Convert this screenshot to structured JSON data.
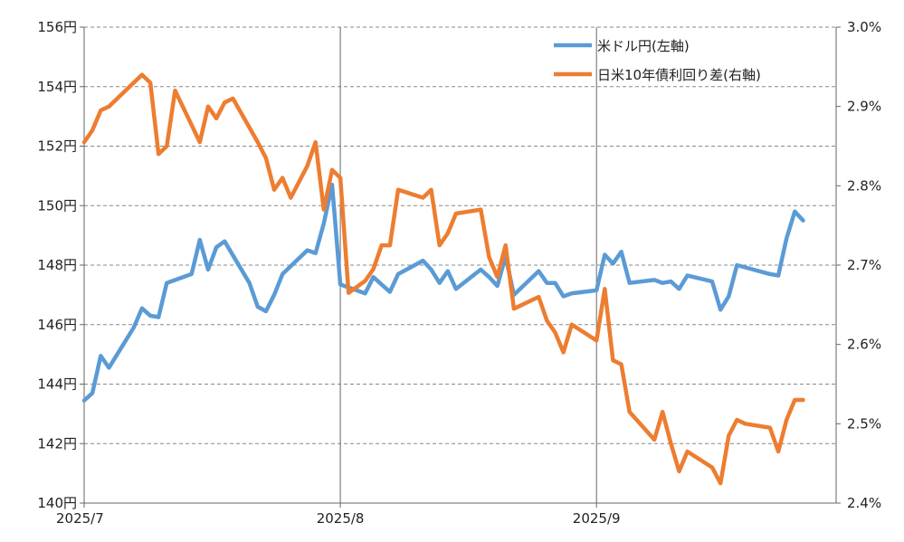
{
  "chart_data": {
    "type": "line",
    "x_axis": {
      "type": "date",
      "min": "2025-07-01",
      "max": "2025-09-30",
      "ticks": [
        {
          "date": "2025-07-01",
          "label": "2025/7"
        },
        {
          "date": "2025-08-01",
          "label": "2025/8"
        },
        {
          "date": "2025-09-01",
          "label": "2025/9"
        }
      ]
    },
    "y_left": {
      "min": 140,
      "max": 156,
      "step": 2,
      "tick_labels": [
        "140円",
        "142円",
        "144円",
        "146円",
        "148円",
        "150円",
        "152円",
        "154円",
        "156円"
      ]
    },
    "y_right": {
      "min": 2.4,
      "max": 3.0,
      "step": 0.1,
      "tick_labels": [
        "2.4%",
        "2.5%",
        "2.6%",
        "2.7%",
        "2.8%",
        "2.9%",
        "3.0%"
      ]
    },
    "grid": "horizontal-dashed",
    "legend": "top-right",
    "series": [
      {
        "name": "米ドル円(左軸)",
        "axis": "left",
        "color": "#5b9bd5",
        "points": [
          [
            "2025-07-01",
            143.45
          ],
          [
            "2025-07-02",
            143.7
          ],
          [
            "2025-07-03",
            144.95
          ],
          [
            "2025-07-04",
            144.55
          ],
          [
            "2025-07-07",
            145.9
          ],
          [
            "2025-07-08",
            146.55
          ],
          [
            "2025-07-09",
            146.3
          ],
          [
            "2025-07-10",
            146.25
          ],
          [
            "2025-07-11",
            147.4
          ],
          [
            "2025-07-14",
            147.7
          ],
          [
            "2025-07-15",
            148.85
          ],
          [
            "2025-07-16",
            147.85
          ],
          [
            "2025-07-17",
            148.6
          ],
          [
            "2025-07-18",
            148.8
          ],
          [
            "2025-07-21",
            147.4
          ],
          [
            "2025-07-22",
            146.6
          ],
          [
            "2025-07-23",
            146.45
          ],
          [
            "2025-07-24",
            147.0
          ],
          [
            "2025-07-25",
            147.7
          ],
          [
            "2025-07-28",
            148.5
          ],
          [
            "2025-07-29",
            148.4
          ],
          [
            "2025-07-30",
            149.4
          ],
          [
            "2025-07-31",
            150.7
          ],
          [
            "2025-08-01",
            147.35
          ],
          [
            "2025-08-04",
            147.05
          ],
          [
            "2025-08-05",
            147.6
          ],
          [
            "2025-08-06",
            147.35
          ],
          [
            "2025-08-07",
            147.1
          ],
          [
            "2025-08-08",
            147.7
          ],
          [
            "2025-08-11",
            148.15
          ],
          [
            "2025-08-12",
            147.85
          ],
          [
            "2025-08-13",
            147.4
          ],
          [
            "2025-08-14",
            147.8
          ],
          [
            "2025-08-15",
            147.2
          ],
          [
            "2025-08-18",
            147.85
          ],
          [
            "2025-08-19",
            147.6
          ],
          [
            "2025-08-20",
            147.3
          ],
          [
            "2025-08-21",
            148.3
          ],
          [
            "2025-08-22",
            147.0
          ],
          [
            "2025-08-25",
            147.8
          ],
          [
            "2025-08-26",
            147.4
          ],
          [
            "2025-08-27",
            147.4
          ],
          [
            "2025-08-28",
            146.95
          ],
          [
            "2025-08-29",
            147.05
          ],
          [
            "2025-09-01",
            147.15
          ],
          [
            "2025-09-02",
            148.35
          ],
          [
            "2025-09-03",
            148.05
          ],
          [
            "2025-09-04",
            148.45
          ],
          [
            "2025-09-05",
            147.4
          ],
          [
            "2025-09-08",
            147.5
          ],
          [
            "2025-09-09",
            147.4
          ],
          [
            "2025-09-10",
            147.45
          ],
          [
            "2025-09-11",
            147.2
          ],
          [
            "2025-09-12",
            147.65
          ],
          [
            "2025-09-15",
            147.45
          ],
          [
            "2025-09-16",
            146.5
          ],
          [
            "2025-09-17",
            146.95
          ],
          [
            "2025-09-18",
            148.0
          ],
          [
            "2025-09-22",
            147.7
          ],
          [
            "2025-09-23",
            147.65
          ],
          [
            "2025-09-24",
            148.9
          ],
          [
            "2025-09-25",
            149.8
          ],
          [
            "2025-09-26",
            149.5
          ]
        ]
      },
      {
        "name": "日米10年債利回り差(右軸)",
        "axis": "right",
        "color": "#ed7d31",
        "points": [
          [
            "2025-07-01",
            2.855
          ],
          [
            "2025-07-02",
            2.87
          ],
          [
            "2025-07-03",
            2.895
          ],
          [
            "2025-07-04",
            2.9
          ],
          [
            "2025-07-07",
            2.93
          ],
          [
            "2025-07-08",
            2.94
          ],
          [
            "2025-07-09",
            2.93
          ],
          [
            "2025-07-10",
            2.84
          ],
          [
            "2025-07-11",
            2.85
          ],
          [
            "2025-07-12",
            2.92
          ],
          [
            "2025-07-15",
            2.855
          ],
          [
            "2025-07-16",
            2.9
          ],
          [
            "2025-07-17",
            2.885
          ],
          [
            "2025-07-18",
            2.905
          ],
          [
            "2025-07-19",
            2.91
          ],
          [
            "2025-07-22",
            2.855
          ],
          [
            "2025-07-23",
            2.835
          ],
          [
            "2025-07-24",
            2.795
          ],
          [
            "2025-07-25",
            2.81
          ],
          [
            "2025-07-26",
            2.785
          ],
          [
            "2025-07-28",
            2.825
          ],
          [
            "2025-07-29",
            2.855
          ],
          [
            "2025-07-30",
            2.77
          ],
          [
            "2025-07-31",
            2.82
          ],
          [
            "2025-08-01",
            2.81
          ],
          [
            "2025-08-02",
            2.665
          ],
          [
            "2025-08-04",
            2.68
          ],
          [
            "2025-08-05",
            2.695
          ],
          [
            "2025-08-06",
            2.725
          ],
          [
            "2025-08-07",
            2.725
          ],
          [
            "2025-08-08",
            2.795
          ],
          [
            "2025-08-11",
            2.785
          ],
          [
            "2025-08-12",
            2.795
          ],
          [
            "2025-08-13",
            2.725
          ],
          [
            "2025-08-14",
            2.74
          ],
          [
            "2025-08-15",
            2.765
          ],
          [
            "2025-08-18",
            2.77
          ],
          [
            "2025-08-19",
            2.71
          ],
          [
            "2025-08-20",
            2.685
          ],
          [
            "2025-08-21",
            2.725
          ],
          [
            "2025-08-22",
            2.645
          ],
          [
            "2025-08-25",
            2.66
          ],
          [
            "2025-08-26",
            2.63
          ],
          [
            "2025-08-27",
            2.615
          ],
          [
            "2025-08-28",
            2.59
          ],
          [
            "2025-08-29",
            2.625
          ],
          [
            "2025-09-01",
            2.605
          ],
          [
            "2025-09-02",
            2.67
          ],
          [
            "2025-09-03",
            2.58
          ],
          [
            "2025-09-04",
            2.575
          ],
          [
            "2025-09-05",
            2.515
          ],
          [
            "2025-09-08",
            2.48
          ],
          [
            "2025-09-09",
            2.515
          ],
          [
            "2025-09-10",
            2.475
          ],
          [
            "2025-09-11",
            2.44
          ],
          [
            "2025-09-12",
            2.465
          ],
          [
            "2025-09-15",
            2.445
          ],
          [
            "2025-09-16",
            2.425
          ],
          [
            "2025-09-17",
            2.485
          ],
          [
            "2025-09-18",
            2.505
          ],
          [
            "2025-09-19",
            2.5
          ],
          [
            "2025-09-22",
            2.495
          ],
          [
            "2025-09-23",
            2.465
          ],
          [
            "2025-09-24",
            2.505
          ],
          [
            "2025-09-25",
            2.53
          ],
          [
            "2025-09-26",
            2.53
          ]
        ]
      }
    ]
  }
}
